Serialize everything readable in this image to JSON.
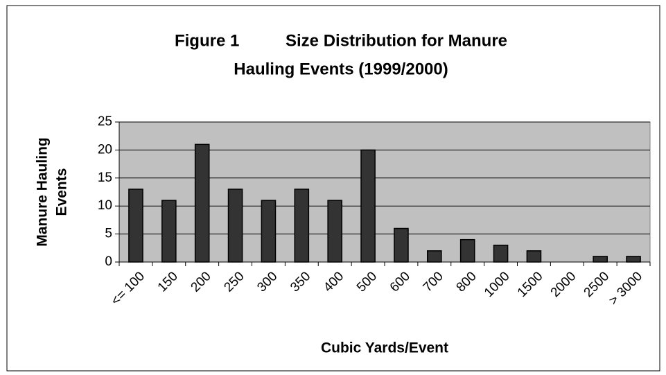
{
  "chart_data": {
    "type": "bar",
    "title": [
      "Figure 1          Size Distribution for Manure",
      "Hauling Events (1999/2000)"
    ],
    "x_label": "Cubic Yards/Event",
    "y_label": [
      "Manure Hauling",
      "Events"
    ],
    "categories": [
      "<= 100",
      "150",
      "200",
      "250",
      "300",
      "350",
      "400",
      "500",
      "600",
      "700",
      "800",
      "1000",
      "1500",
      "2000",
      "2500",
      "> 3000"
    ],
    "values": [
      13,
      11,
      21,
      13,
      11,
      13,
      11,
      20,
      6,
      2,
      4,
      3,
      2,
      0,
      1,
      1
    ],
    "color": "#333333",
    "ylim": [
      0,
      25
    ],
    "yticks": [
      0,
      5,
      10,
      15,
      20,
      25
    ],
    "grid": true
  }
}
